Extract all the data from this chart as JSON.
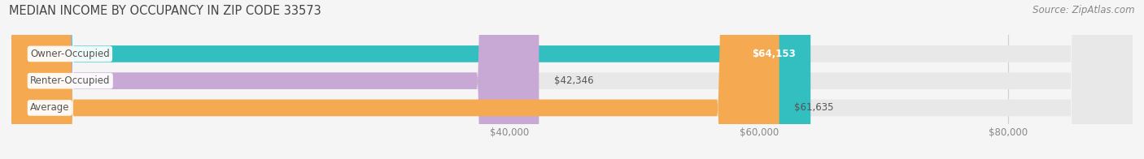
{
  "title": "MEDIAN INCOME BY OCCUPANCY IN ZIP CODE 33573",
  "source": "Source: ZipAtlas.com",
  "categories": [
    "Owner-Occupied",
    "Renter-Occupied",
    "Average"
  ],
  "values": [
    64153,
    42346,
    61635
  ],
  "bar_colors": [
    "#33bfc0",
    "#c8a8d5",
    "#f5aa52"
  ],
  "bar_bg_color": "#e8e8e8",
  "value_labels": [
    "$64,153",
    "$42,346",
    "$61,635"
  ],
  "value_inside": [
    true,
    false,
    false
  ],
  "value_text_colors": [
    "#ffffff",
    "#555555",
    "#555555"
  ],
  "xlim_min": 0,
  "xlim_max": 90000,
  "xticks": [
    40000,
    60000,
    80000
  ],
  "xtick_labels": [
    "$40,000",
    "$60,000",
    "$80,000"
  ],
  "title_fontsize": 10.5,
  "source_fontsize": 8.5,
  "label_fontsize": 8.5,
  "value_fontsize": 8.5,
  "bar_height": 0.62,
  "background_color": "#f5f5f5",
  "cat_label_color": "#555555",
  "grid_color": "#d0d0d0"
}
